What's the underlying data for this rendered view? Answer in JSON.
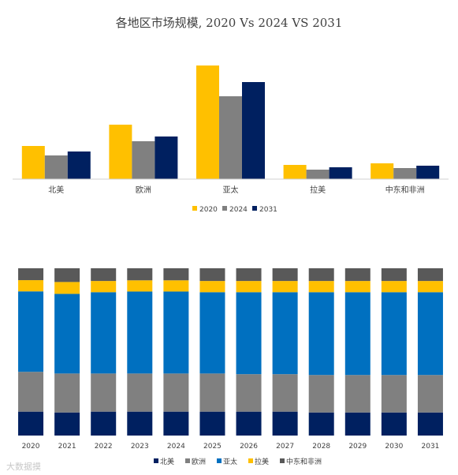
{
  "title": "各地区市场规模, 2020 Vs 2024 VS 2031",
  "watermark": "大数据摸",
  "colors": {
    "series1": "#FFC000",
    "series2": "#808080",
    "series3": "#002060",
    "axis": "#d0d0d0",
    "text": "#404040"
  },
  "chart_data": [
    {
      "type": "bar",
      "title": "各地区市场规模, 2020 Vs 2024 VS 2031",
      "categories": [
        "北美",
        "欧洲",
        "亚太",
        "拉美",
        "中东和非洲"
      ],
      "series": [
        {
          "name": "2020",
          "color": "#FFC000",
          "values": [
            42,
            69,
            144,
            18,
            20
          ]
        },
        {
          "name": "2024",
          "color": "#808080",
          "values": [
            30,
            48,
            105,
            12,
            14
          ]
        },
        {
          "name": "2031",
          "color": "#002060",
          "values": [
            35,
            54,
            123,
            15,
            17
          ]
        }
      ],
      "ylim": [
        0,
        150
      ],
      "legend": "bottom",
      "grid": false
    },
    {
      "type": "bar",
      "stacked": true,
      "normalized": true,
      "categories": [
        "2020",
        "2021",
        "2022",
        "2023",
        "2024",
        "2025",
        "2026",
        "2027",
        "2028",
        "2029",
        "2030",
        "2031"
      ],
      "series": [
        {
          "name": "北美",
          "color": "#002060",
          "values": [
            14.3,
            13.8,
            14.3,
            14.3,
            14.3,
            14.3,
            14.3,
            14.3,
            13.8,
            13.8,
            13.8,
            13.8
          ]
        },
        {
          "name": "欧洲",
          "color": "#808080",
          "values": [
            23.8,
            23.3,
            22.8,
            22.8,
            22.8,
            22.8,
            22.4,
            22.4,
            22.4,
            22.4,
            22.4,
            22.4
          ]
        },
        {
          "name": "亚太",
          "color": "#0070C0",
          "values": [
            48.1,
            47.6,
            48.6,
            49.0,
            49.0,
            48.6,
            49.0,
            49.0,
            49.5,
            49.5,
            49.5,
            49.5
          ]
        },
        {
          "name": "拉美",
          "color": "#FFC000",
          "values": [
            6.7,
            7.1,
            6.7,
            6.7,
            6.7,
            6.7,
            6.7,
            6.7,
            6.7,
            6.7,
            6.7,
            6.7
          ]
        },
        {
          "name": "中东和非洲",
          "color": "#595959",
          "values": [
            7.1,
            8.2,
            7.6,
            7.2,
            7.2,
            7.6,
            7.6,
            7.6,
            7.6,
            7.6,
            7.6,
            7.6
          ]
        }
      ],
      "ylim": [
        0,
        100
      ],
      "legend": "bottom",
      "grid": false
    }
  ]
}
